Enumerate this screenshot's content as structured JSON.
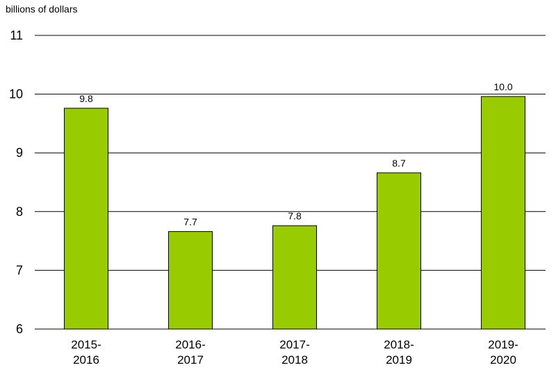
{
  "chart_data": {
    "type": "bar",
    "unit_label": "billions of dollars",
    "categories": [
      [
        "2015-",
        "2016"
      ],
      [
        "2016-",
        "2017"
      ],
      [
        "2017-",
        "2018"
      ],
      [
        "2018-",
        "2019"
      ],
      [
        "2019-",
        "2020"
      ]
    ],
    "values": [
      9.76,
      7.66,
      7.76,
      8.66,
      9.96
    ],
    "data_labels": [
      "9.8",
      "7.7",
      "7.8",
      "8.7",
      "10.0"
    ],
    "ylim": [
      6,
      11
    ],
    "yticks": [
      6,
      7,
      8,
      9,
      10,
      11
    ],
    "grid": true,
    "bar_color": "#99cc00",
    "bar_stroke": "#000000",
    "grid_color": "#000000"
  }
}
